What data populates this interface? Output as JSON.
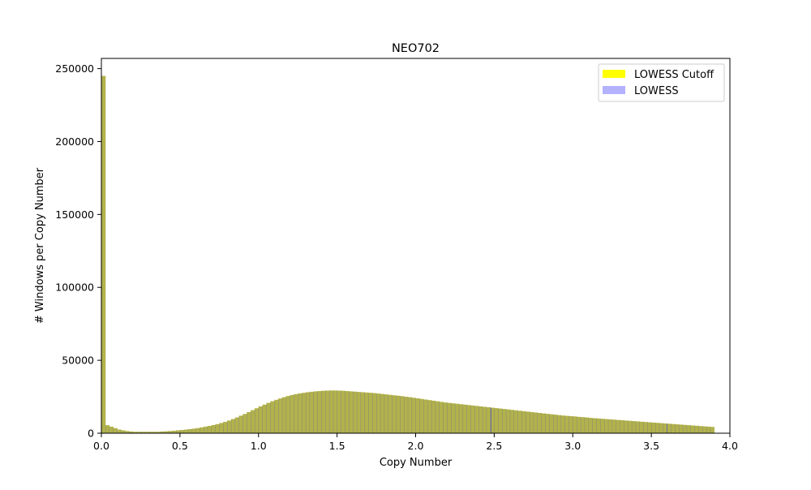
{
  "chart_data": {
    "type": "bar",
    "title": "NEO702",
    "xlabel": "Copy Number",
    "ylabel": "# Windows per Copy Number",
    "xlim": [
      0,
      4
    ],
    "ylim": [
      0,
      257000
    ],
    "x_ticks": [
      "0.0",
      "0.5",
      "1.0",
      "1.5",
      "2.0",
      "2.5",
      "3.0",
      "3.5",
      "4.0"
    ],
    "x_tick_values": [
      0,
      0.5,
      1.0,
      1.5,
      2.0,
      2.5,
      3.0,
      3.5,
      4.0
    ],
    "y_ticks": [
      "0",
      "50000",
      "100000",
      "150000",
      "200000",
      "250000"
    ],
    "y_tick_values": [
      0,
      50000,
      100000,
      150000,
      200000,
      250000
    ],
    "grid": false,
    "legend_position": "top-right",
    "bin_width": 0.025,
    "bin_start": 0,
    "series": [
      {
        "name": "LOWESS Cutoff",
        "color": "#ffff00",
        "opacity": 1.0,
        "values": [
          245000,
          5500,
          4500,
          3500,
          2500,
          2000,
          1500,
          1200,
          1000,
          1000,
          1000,
          1000,
          1000,
          1000,
          1000,
          1200,
          1300,
          1500,
          1700,
          2000,
          2200,
          2500,
          2800,
          3100,
          3500,
          4000,
          4500,
          5000,
          5600,
          6200,
          7000,
          7800,
          8700,
          9700,
          10800,
          12000,
          13200,
          14500,
          15800,
          17100,
          18400,
          19600,
          20800,
          21900,
          22900,
          23800,
          24700,
          25500,
          26200,
          26800,
          27300,
          27700,
          28100,
          28400,
          28700,
          28900,
          29100,
          29200,
          29300,
          29300,
          29200,
          29100,
          28900,
          28700,
          28500,
          28300,
          28100,
          27900,
          27700,
          27500,
          27200,
          26900,
          26600,
          26300,
          26000,
          25700,
          25400,
          25000,
          24700,
          24300,
          23900,
          23500,
          23100,
          22700,
          22300,
          21900,
          21500,
          21100,
          20800,
          20500,
          20200,
          19900,
          19600,
          19300,
          19000,
          18700,
          18400,
          18100,
          17800,
          17500,
          17200,
          16900,
          16600,
          16300,
          16000,
          15700,
          15400,
          15100,
          14800,
          14500,
          14200,
          13900,
          13600,
          13300,
          13000,
          12700,
          12400,
          12100,
          11900,
          11700,
          11500,
          11200,
          11000,
          10800,
          10500,
          10300,
          10100,
          9900,
          9700,
          9500,
          9300,
          9100,
          8900,
          8700,
          8500,
          8300,
          8100,
          7900,
          7700,
          7500,
          7300,
          7100,
          6900,
          6700,
          6500,
          6300,
          6100,
          5900,
          5700,
          5500,
          5300,
          5100,
          4900,
          4700,
          4500,
          4300
        ]
      },
      {
        "name": "LOWESS",
        "color": "#0000ff",
        "opacity": 0.3,
        "values": [
          245000,
          5500,
          4500,
          3500,
          2500,
          2000,
          1500,
          1200,
          1000,
          1000,
          1000,
          1000,
          1000,
          1000,
          1000,
          1200,
          1300,
          1500,
          1700,
          2000,
          2200,
          2500,
          2800,
          3100,
          3500,
          4000,
          4500,
          5000,
          5600,
          6200,
          7000,
          7800,
          8700,
          9700,
          10800,
          12000,
          13200,
          14500,
          15800,
          17100,
          18400,
          19600,
          20800,
          21900,
          22900,
          23800,
          24700,
          25500,
          26200,
          26800,
          27300,
          27700,
          28100,
          28400,
          28700,
          28900,
          29100,
          29200,
          29300,
          29300,
          29200,
          29100,
          28900,
          28700,
          28500,
          28300,
          28100,
          27900,
          27700,
          27500,
          27200,
          26900,
          26600,
          26300,
          26000,
          25700,
          25400,
          25000,
          24700,
          24300,
          23900,
          23500,
          23100,
          22700,
          22300,
          21900,
          21500,
          21100,
          20800,
          20500,
          20200,
          19900,
          19600,
          19300,
          19000,
          18700,
          18400,
          18100,
          17800,
          17500,
          17200,
          16900,
          16600,
          16300,
          16000,
          15700,
          15400,
          15100,
          14800,
          14500,
          14200,
          13900,
          13600,
          13300,
          13000,
          12700,
          12400,
          12100,
          11900,
          11700,
          11500,
          11200,
          11000,
          10800,
          10500,
          10300,
          10100,
          9900,
          9700,
          9500,
          9300,
          9100,
          8900,
          8700,
          8500,
          8300,
          8100,
          7900,
          7700,
          7500,
          7300,
          7100,
          6900,
          6700,
          6500,
          6300,
          6100,
          5900,
          5700,
          5500,
          5300,
          5100,
          4900,
          4700,
          4500,
          4300
        ]
      }
    ],
    "vertical_markers": [
      2.48,
      3.6
    ],
    "marker_color": "#6e6e9a"
  }
}
